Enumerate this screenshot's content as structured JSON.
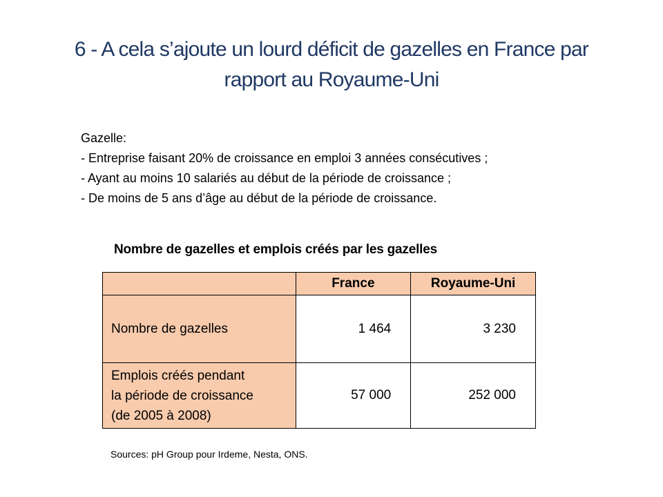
{
  "title": {
    "line1": "6 - A cela s’ajoute un lourd déficit de gazelles en France par",
    "line2": "rapport au Royaume-Uni"
  },
  "definition": {
    "heading": "Gazelle:",
    "items": [
      "- Entreprise faisant 20% de croissance en emploi 3 années consécutives ;",
      "- Ayant au moins 10 salariés au début de la période de croissance ;",
      "- De moins de 5 ans d’âge au début de la période de croissance."
    ]
  },
  "table": {
    "title": "Nombre de gazelles et emplois créés par les gazelles",
    "headers": [
      "",
      "France",
      "Royaume-Uni"
    ],
    "rows": [
      {
        "label_lines": [
          "Nombre de gazelles"
        ],
        "france": "1 464",
        "uk": "3 230"
      },
      {
        "label_lines": [
          "Emplois créés pendant",
          "la période de croissance",
          "(de 2005 à 2008)"
        ],
        "france": "57 000",
        "uk": "252 000"
      }
    ]
  },
  "sources": "Sources: pH Group pour Irdeme, Nesta, ONS.",
  "colors": {
    "title": "#1f3864",
    "table_highlight": "#f8cbad"
  }
}
